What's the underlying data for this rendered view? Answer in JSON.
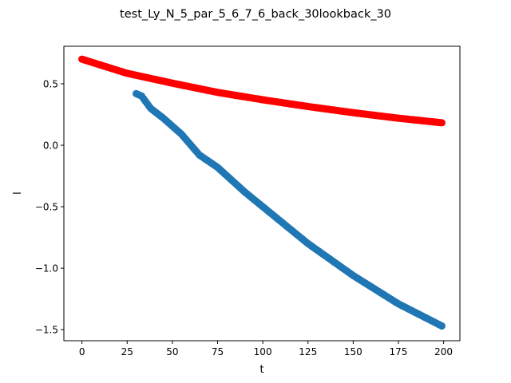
{
  "chart_data": {
    "type": "scatter",
    "title": "test_Ly_N_5_par_5_6_7_6_back_30lookback_30",
    "xlabel": "t",
    "ylabel": "l",
    "xlim": [
      -10,
      209
    ],
    "ylim": [
      -1.59,
      0.805
    ],
    "xticks": [
      0,
      25,
      50,
      75,
      100,
      125,
      150,
      175,
      200
    ],
    "xtick_labels": [
      "0",
      "25",
      "50",
      "75",
      "100",
      "125",
      "150",
      "175",
      "200"
    ],
    "yticks": [
      -1.5,
      -1.0,
      -0.5,
      0.0,
      0.5
    ],
    "ytick_labels": [
      "−1.5",
      "−1.0",
      "−0.5",
      "0.0",
      "0.5"
    ],
    "grid": false,
    "series": [
      {
        "color": "#ff0000",
        "x_range": [
          0,
          199
        ],
        "anchors": [
          [
            0,
            0.7
          ],
          [
            25,
            0.585
          ],
          [
            50,
            0.505
          ],
          [
            75,
            0.43
          ],
          [
            100,
            0.37
          ],
          [
            125,
            0.315
          ],
          [
            150,
            0.265
          ],
          [
            175,
            0.22
          ],
          [
            199,
            0.183
          ]
        ]
      },
      {
        "color": "#1f77b4",
        "x_range": [
          30,
          199
        ],
        "anchors": [
          [
            30,
            0.42
          ],
          [
            33,
            0.4
          ],
          [
            38,
            0.3
          ],
          [
            45,
            0.22
          ],
          [
            55,
            0.09
          ],
          [
            65,
            -0.08
          ],
          [
            75,
            -0.18
          ],
          [
            90,
            -0.38
          ],
          [
            100,
            -0.5
          ],
          [
            125,
            -0.8
          ],
          [
            150,
            -1.06
          ],
          [
            175,
            -1.29
          ],
          [
            199,
            -1.47
          ]
        ]
      }
    ]
  }
}
